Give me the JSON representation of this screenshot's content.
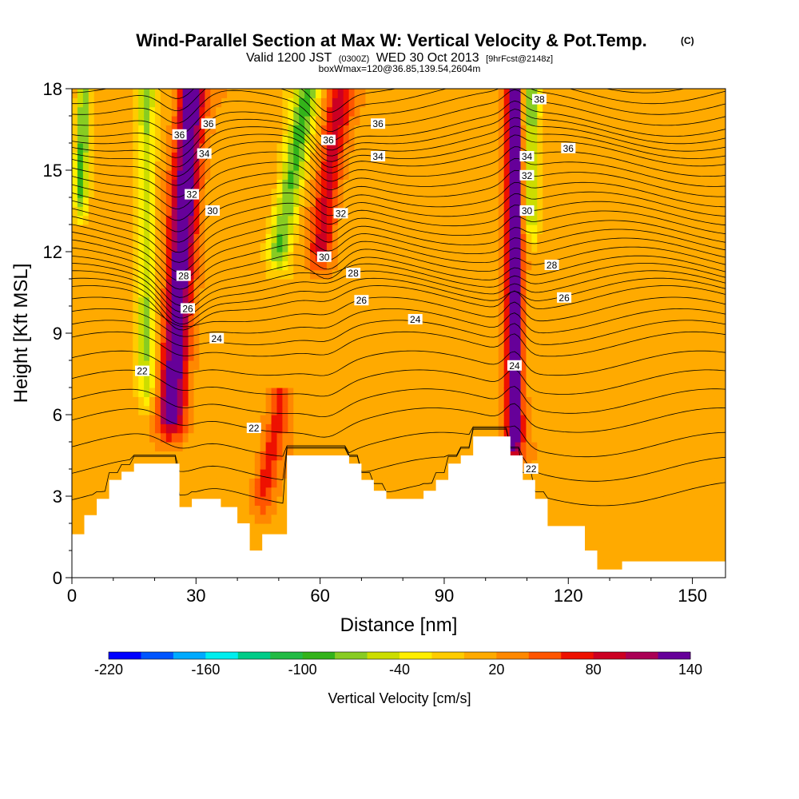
{
  "title": {
    "main": "Wind-Parallel Section at Max W: Vertical Velocity & Pot.Temp.",
    "copyright": "(C)",
    "valid_prefix": "Valid 1200 JST",
    "valid_zulu": "(0300Z)",
    "valid_date": "WED 30 Oct 2013",
    "forecast": "[9hrFcst@2148z]",
    "boxline": "boxWmax=120@36.85,139.54,2604m"
  },
  "colors": {
    "terrain": "#ffffff",
    "contour": "#000000",
    "palette": [
      "#0000ff",
      "#0055ff",
      "#00aaff",
      "#00eeee",
      "#00cc88",
      "#22bb44",
      "#33b31a",
      "#88cc22",
      "#ccdd00",
      "#ffee00",
      "#ffcc00",
      "#ffaa00",
      "#ff8800",
      "#ff5500",
      "#ee1100",
      "#cc0022",
      "#aa0055",
      "#660099"
    ]
  },
  "chart_data": {
    "type": "heatmap",
    "x_axis": {
      "label": "Distance [nm]",
      "range": [
        0,
        158
      ],
      "ticks": [
        0,
        30,
        60,
        90,
        120,
        150
      ],
      "tick_labels": [
        "0",
        "30",
        "60",
        "90",
        "120",
        "150"
      ]
    },
    "y_axis": {
      "label": "Height [Kft MSL]",
      "range": [
        0,
        18
      ],
      "ticks": [
        0,
        3,
        6,
        9,
        12,
        15,
        18
      ],
      "tick_labels": [
        "0",
        "3",
        "6",
        "9",
        "12",
        "15",
        "18"
      ]
    },
    "colorbar": {
      "title": "Vertical Velocity [cm/s]",
      "range": [
        -220,
        140
      ],
      "step": 20,
      "tick_values": [
        -220,
        -160,
        -100,
        -40,
        20,
        80,
        140
      ],
      "tick_labels": [
        "-220",
        "-160",
        "-100",
        "-40",
        "20",
        "80",
        "140"
      ]
    },
    "updrafts": [
      {
        "x_bottom": 24,
        "x_top": 29,
        "y_bottom": 6,
        "y_top": 18,
        "peak": 140,
        "width": 3.2
      },
      {
        "x_bottom": 60,
        "x_top": 65,
        "y_bottom": 12,
        "y_top": 18,
        "peak": 75,
        "width": 3.0
      },
      {
        "x_bottom": 107,
        "x_top": 107,
        "y_bottom": 5,
        "y_top": 18,
        "peak": 140,
        "width": 2.0
      },
      {
        "x_bottom": 46,
        "x_top": 50,
        "y_bottom": 3,
        "y_top": 6,
        "peak": 55,
        "width": 2.5
      }
    ],
    "downdrafts": [
      {
        "x_bottom": 2,
        "x_top": 3,
        "y_bottom": 14,
        "y_top": 18,
        "peak": -100,
        "width": 1.6
      },
      {
        "x_bottom": 18,
        "x_top": 18,
        "y_bottom": 7,
        "y_top": 18,
        "peak": -70,
        "width": 2.2
      },
      {
        "x_bottom": 50,
        "x_top": 57,
        "y_bottom": 12,
        "y_top": 18,
        "peak": -100,
        "width": 3.0
      },
      {
        "x_bottom": 111,
        "x_top": 111,
        "y_bottom": 13,
        "y_top": 18,
        "peak": -80,
        "width": 2.0
      }
    ],
    "terrain": {
      "x": [
        0,
        3,
        6,
        9,
        12,
        15,
        18,
        22,
        26,
        29,
        32,
        36,
        40,
        43,
        46,
        49,
        52,
        55,
        58,
        61,
        64,
        67,
        70,
        73,
        76,
        79,
        82,
        85,
        88,
        91,
        94,
        97,
        100,
        103,
        106,
        109,
        112,
        115,
        118,
        121,
        124,
        127,
        130,
        133,
        137,
        141,
        145,
        150,
        155,
        158
      ],
      "height": [
        1.6,
        2.3,
        2.9,
        3.6,
        3.9,
        4.2,
        4.2,
        4.2,
        2.6,
        2.9,
        2.9,
        2.6,
        2.0,
        1.0,
        1.6,
        1.6,
        4.5,
        4.5,
        4.5,
        4.5,
        4.5,
        4.2,
        3.6,
        3.2,
        2.9,
        2.9,
        2.9,
        3.2,
        3.6,
        4.2,
        4.5,
        5.2,
        5.2,
        5.2,
        4.5,
        3.6,
        2.9,
        1.9,
        1.9,
        1.9,
        1.0,
        0.3,
        0.3,
        0.6,
        0.6,
        0.6,
        0.6,
        0.6,
        0.6,
        0.6
      ]
    },
    "isentropes": {
      "levels": [
        22,
        24,
        26,
        28,
        30,
        32,
        34,
        36,
        38
      ],
      "base_heights": [
        5.8,
        8.6,
        10.3,
        11.4,
        12.7,
        14.1,
        15.6,
        16.7,
        18.3
      ],
      "labels": [
        {
          "text": "22",
          "x": 17,
          "y": 7.6
        },
        {
          "text": "22",
          "x": 44,
          "y": 5.5
        },
        {
          "text": "22",
          "x": 111,
          "y": 4.0
        },
        {
          "text": "24",
          "x": 35,
          "y": 8.8
        },
        {
          "text": "24",
          "x": 83,
          "y": 9.5
        },
        {
          "text": "24",
          "x": 107,
          "y": 7.8
        },
        {
          "text": "26",
          "x": 28,
          "y": 9.9
        },
        {
          "text": "26",
          "x": 70,
          "y": 10.2
        },
        {
          "text": "26",
          "x": 119,
          "y": 10.3
        },
        {
          "text": "28",
          "x": 27,
          "y": 11.1
        },
        {
          "text": "28",
          "x": 68,
          "y": 11.2
        },
        {
          "text": "28",
          "x": 116,
          "y": 11.5
        },
        {
          "text": "30",
          "x": 34,
          "y": 13.5
        },
        {
          "text": "30",
          "x": 61,
          "y": 11.8
        },
        {
          "text": "30",
          "x": 110,
          "y": 13.5
        },
        {
          "text": "32",
          "x": 29,
          "y": 14.1
        },
        {
          "text": "32",
          "x": 65,
          "y": 13.4
        },
        {
          "text": "32",
          "x": 110,
          "y": 14.8
        },
        {
          "text": "34",
          "x": 32,
          "y": 15.6
        },
        {
          "text": "34",
          "x": 74,
          "y": 15.5
        },
        {
          "text": "34",
          "x": 110,
          "y": 15.5
        },
        {
          "text": "36",
          "x": 33,
          "y": 16.7
        },
        {
          "text": "36",
          "x": 62,
          "y": 16.1
        },
        {
          "text": "36",
          "x": 74,
          "y": 16.7
        },
        {
          "text": "36",
          "x": 120,
          "y": 15.8
        },
        {
          "text": "36",
          "x": 26,
          "y": 16.3
        },
        {
          "text": "38",
          "x": 113,
          "y": 17.6
        }
      ]
    }
  }
}
